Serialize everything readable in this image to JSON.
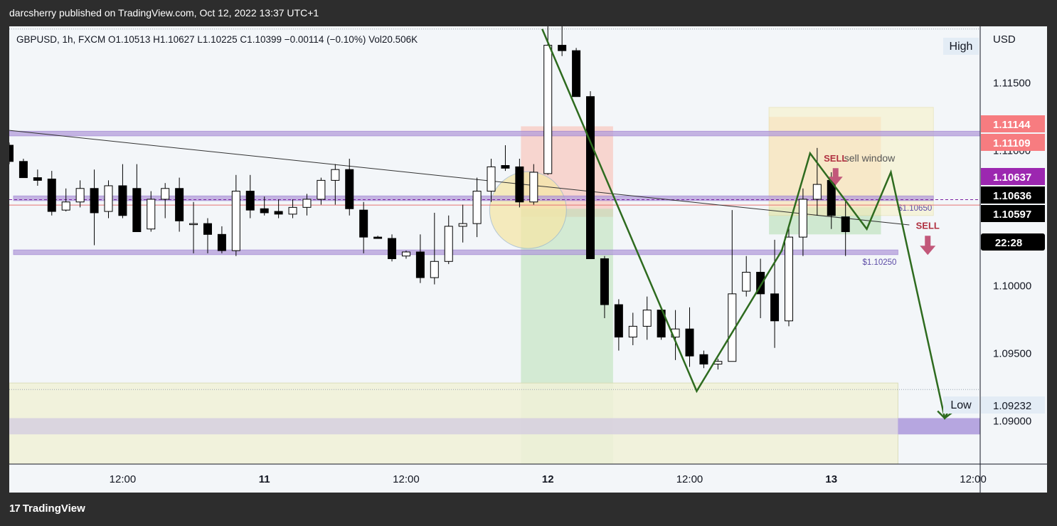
{
  "publish_line": "darcsherry published on TradingView.com, Oct 12, 2022 13:37 UTC+1",
  "brand": "TradingView",
  "brand_icon": "tradingview-logo-icon",
  "chart_data": {
    "type": "candlestick",
    "symbol": "GBPUSD",
    "interval": "1h",
    "source": "FXCM",
    "header_line": "GBPUSD, 1h, FXCM  O1.10513  H1.10627  L1.10225  C1.10399  −0.00114 (−0.10%)  Vol20.506K",
    "currency": "USD",
    "y_range": [
      1.0868,
      1.1192
    ],
    "x_range": [
      0.0,
      68.5
    ],
    "y_ticks": [
      {
        "value": 1.115,
        "label": "1.11500"
      },
      {
        "value": 1.11,
        "label": "1.11000"
      },
      {
        "value": 1.1,
        "label": "1.10000"
      },
      {
        "value": 1.095,
        "label": "1.09500"
      },
      {
        "value": 1.09,
        "label": "1.09000"
      }
    ],
    "x_ticks": [
      {
        "x": 8,
        "label": "12:00"
      },
      {
        "x": 18,
        "label": "11"
      },
      {
        "x": 28,
        "label": "12:00"
      },
      {
        "x": 38,
        "label": "12"
      },
      {
        "x": 48,
        "label": "12:00"
      },
      {
        "x": 58,
        "label": "13"
      },
      {
        "x": 68,
        "label": "12:00"
      }
    ],
    "price_labels": [
      {
        "value": 1.11144,
        "label": "1.11144",
        "bg": "#f77c80",
        "fg": "#ffffff"
      },
      {
        "value": 1.11109,
        "label": "1.11109",
        "bg": "#f77c80",
        "fg": "#ffffff"
      },
      {
        "value": 1.10637,
        "label": "1.10637",
        "bg": "#9c27b0",
        "fg": "#ffffff"
      },
      {
        "value": 1.10636,
        "label": "1.10636",
        "bg": "#000000",
        "fg": "#ffffff"
      },
      {
        "value": 1.10597,
        "label": "1.10597",
        "bg": "#000000",
        "fg": "#ffffff"
      },
      {
        "value": 1.1051,
        "label": "22:28",
        "bg": "#000000",
        "fg": "#ffffff"
      },
      {
        "value": 1.09232,
        "label": "1.09232",
        "bg": "#e3ecf5",
        "fg": "#131722"
      }
    ],
    "high_label": {
      "text": "High",
      "value": 1.119
    },
    "low_label": {
      "text": "Low",
      "value": 1.09232
    },
    "candles": [
      {
        "x": 0.0,
        "o": 1.1104,
        "h": 1.1106,
        "l": 1.109,
        "c": 1.1092
      },
      {
        "x": 1.0,
        "o": 1.1092,
        "h": 1.1094,
        "l": 1.108,
        "c": 1.108
      },
      {
        "x": 2.0,
        "o": 1.108,
        "h": 1.1086,
        "l": 1.1074,
        "c": 1.1078
      },
      {
        "x": 3.0,
        "o": 1.1079,
        "h": 1.1085,
        "l": 1.1052,
        "c": 1.1055
      },
      {
        "x": 4.0,
        "o": 1.1056,
        "h": 1.1072,
        "l": 1.1055,
        "c": 1.1062
      },
      {
        "x": 5.0,
        "o": 1.1062,
        "h": 1.1078,
        "l": 1.1058,
        "c": 1.1072
      },
      {
        "x": 6.0,
        "o": 1.1072,
        "h": 1.1086,
        "l": 1.103,
        "c": 1.1054
      },
      {
        "x": 7.0,
        "o": 1.1055,
        "h": 1.1078,
        "l": 1.105,
        "c": 1.1074
      },
      {
        "x": 8.0,
        "o": 1.1074,
        "h": 1.109,
        "l": 1.105,
        "c": 1.1052
      },
      {
        "x": 9.0,
        "o": 1.1072,
        "h": 1.109,
        "l": 1.104,
        "c": 1.104
      },
      {
        "x": 10.0,
        "o": 1.1042,
        "h": 1.107,
        "l": 1.104,
        "c": 1.1064
      },
      {
        "x": 11.0,
        "o": 1.1064,
        "h": 1.1076,
        "l": 1.105,
        "c": 1.1072
      },
      {
        "x": 12.0,
        "o": 1.1072,
        "h": 1.108,
        "l": 1.104,
        "c": 1.1048
      },
      {
        "x": 13.0,
        "o": 1.1046,
        "h": 1.1062,
        "l": 1.1024,
        "c": 1.1046
      },
      {
        "x": 14.0,
        "o": 1.1046,
        "h": 1.105,
        "l": 1.1024,
        "c": 1.1038
      },
      {
        "x": 15.0,
        "o": 1.1038,
        "h": 1.1044,
        "l": 1.1024,
        "c": 1.1026
      },
      {
        "x": 16.0,
        "o": 1.1026,
        "h": 1.1082,
        "l": 1.1022,
        "c": 1.107
      },
      {
        "x": 17.0,
        "o": 1.107,
        "h": 1.1082,
        "l": 1.105,
        "c": 1.1056
      },
      {
        "x": 18.0,
        "o": 1.1057,
        "h": 1.1066,
        "l": 1.1052,
        "c": 1.1054
      },
      {
        "x": 19.0,
        "o": 1.1055,
        "h": 1.1064,
        "l": 1.105,
        "c": 1.1053
      },
      {
        "x": 20.0,
        "o": 1.1053,
        "h": 1.1064,
        "l": 1.105,
        "c": 1.1058
      },
      {
        "x": 21.0,
        "o": 1.1058,
        "h": 1.1068,
        "l": 1.1052,
        "c": 1.1064
      },
      {
        "x": 22.0,
        "o": 1.1064,
        "h": 1.108,
        "l": 1.106,
        "c": 1.1078
      },
      {
        "x": 23.0,
        "o": 1.1078,
        "h": 1.109,
        "l": 1.106,
        "c": 1.1086
      },
      {
        "x": 24.0,
        "o": 1.1086,
        "h": 1.1094,
        "l": 1.1052,
        "c": 1.1057
      },
      {
        "x": 25.0,
        "o": 1.1056,
        "h": 1.1062,
        "l": 1.1024,
        "c": 1.1036
      },
      {
        "x": 26.0,
        "o": 1.1036,
        "h": 1.1037,
        "l": 1.1035,
        "c": 1.1035
      },
      {
        "x": 27.0,
        "o": 1.1035,
        "h": 1.1038,
        "l": 1.1018,
        "c": 1.102
      },
      {
        "x": 28.0,
        "o": 1.1022,
        "h": 1.1026,
        "l": 1.102,
        "c": 1.1025
      },
      {
        "x": 29.0,
        "o": 1.1025,
        "h": 1.1038,
        "l": 1.1002,
        "c": 1.1006
      },
      {
        "x": 30.0,
        "o": 1.1006,
        "h": 1.1054,
        "l": 1.1001,
        "c": 1.1018
      },
      {
        "x": 31.0,
        "o": 1.1018,
        "h": 1.1052,
        "l": 1.1016,
        "c": 1.1044
      },
      {
        "x": 32.0,
        "o": 1.1044,
        "h": 1.106,
        "l": 1.1032,
        "c": 1.1046
      },
      {
        "x": 33.0,
        "o": 1.1046,
        "h": 1.108,
        "l": 1.1036,
        "c": 1.107
      },
      {
        "x": 34.0,
        "o": 1.107,
        "h": 1.1094,
        "l": 1.1062,
        "c": 1.1088
      },
      {
        "x": 35.0,
        "o": 1.1089,
        "h": 1.1104,
        "l": 1.1085,
        "c": 1.1087
      },
      {
        "x": 36.0,
        "o": 1.1088,
        "h": 1.1094,
        "l": 1.1058,
        "c": 1.1062
      },
      {
        "x": 37.0,
        "o": 1.1062,
        "h": 1.109,
        "l": 1.106,
        "c": 1.1084
      },
      {
        "x": 38.0,
        "o": 1.1083,
        "h": 1.1196,
        "l": 1.1082,
        "c": 1.1178
      },
      {
        "x": 39.0,
        "o": 1.1178,
        "h": 1.1194,
        "l": 1.117,
        "c": 1.1174
      },
      {
        "x": 40.0,
        "o": 1.1174,
        "h": 1.1176,
        "l": 1.114,
        "c": 1.114
      },
      {
        "x": 41.0,
        "o": 1.114,
        "h": 1.1144,
        "l": 1.102,
        "c": 1.102
      },
      {
        "x": 42.0,
        "o": 1.102,
        "h": 1.1022,
        "l": 1.0976,
        "c": 1.0986
      },
      {
        "x": 43.0,
        "o": 1.0986,
        "h": 1.099,
        "l": 1.0952,
        "c": 1.0962
      },
      {
        "x": 44.0,
        "o": 1.0962,
        "h": 1.098,
        "l": 1.0956,
        "c": 1.097
      },
      {
        "x": 45.0,
        "o": 1.097,
        "h": 1.0992,
        "l": 1.096,
        "c": 1.0982
      },
      {
        "x": 46.0,
        "o": 1.0982,
        "h": 1.0984,
        "l": 1.096,
        "c": 1.0962
      },
      {
        "x": 47.0,
        "o": 1.0962,
        "h": 1.0982,
        "l": 1.0945,
        "c": 1.0968
      },
      {
        "x": 48.0,
        "o": 1.0968,
        "h": 1.0984,
        "l": 1.094,
        "c": 1.0948
      },
      {
        "x": 49.0,
        "o": 1.0949,
        "h": 1.0952,
        "l": 1.0939,
        "c": 1.0942
      },
      {
        "x": 50.0,
        "o": 1.0942,
        "h": 1.0946,
        "l": 1.0938,
        "c": 1.0944
      },
      {
        "x": 51.0,
        "o": 1.0944,
        "h": 1.1056,
        "l": 1.0944,
        "c": 1.0994
      },
      {
        "x": 52.0,
        "o": 1.0996,
        "h": 1.1022,
        "l": 1.0992,
        "c": 1.101
      },
      {
        "x": 53.0,
        "o": 1.101,
        "h": 1.102,
        "l": 1.0976,
        "c": 1.0994
      },
      {
        "x": 54.0,
        "o": 1.0994,
        "h": 1.1034,
        "l": 1.0954,
        "c": 1.0974
      },
      {
        "x": 55.0,
        "o": 1.0974,
        "h": 1.1044,
        "l": 1.097,
        "c": 1.1036
      },
      {
        "x": 56.0,
        "o": 1.1036,
        "h": 1.1072,
        "l": 1.1022,
        "c": 1.1064
      },
      {
        "x": 57.0,
        "o": 1.1064,
        "h": 1.1102,
        "l": 1.1052,
        "c": 1.1075
      },
      {
        "x": 58.0,
        "o": 1.1078,
        "h": 1.1084,
        "l": 1.1042,
        "c": 1.1052
      },
      {
        "x": 59.0,
        "o": 1.1051,
        "h": 1.1063,
        "l": 1.1022,
        "c": 1.104
      }
    ],
    "bands": [
      {
        "from": 1.11109,
        "to": 1.11144,
        "color": "#b39ddb",
        "label": ""
      },
      {
        "from": 1.1023,
        "to": 1.10265,
        "color": "#b39ddb",
        "label": "$1.10250"
      },
      {
        "from": 1.1063,
        "to": 1.10665,
        "color": "#b39ddb",
        "label": "$1.10650"
      }
    ],
    "annotations": {
      "sell_window": "sell window",
      "sell_label_1": "SELL",
      "sell_label_2": "SELL",
      "zigzag": [
        {
          "x": 37.6,
          "y": 1.119
        },
        {
          "x": 48.5,
          "y": 1.0922
        },
        {
          "x": 54.5,
          "y": 1.1026
        },
        {
          "x": 56.5,
          "y": 1.1098
        },
        {
          "x": 60.5,
          "y": 1.1042
        },
        {
          "x": 62.2,
          "y": 1.1084
        },
        {
          "x": 66.0,
          "y": 1.0902
        },
        {
          "x": 67.0,
          "y": 1.091
        }
      ],
      "trendline": [
        {
          "x": 0.0,
          "y": 1.1115
        },
        {
          "x": 63.5,
          "y": 1.1045
        }
      ]
    },
    "colors": {
      "up_body": "#ffffff",
      "down_body": "#000000",
      "wick": "#000000",
      "zigzag": "#2e6b1f",
      "sell_text": "#b03040",
      "sell_arrow": "#c2587a"
    }
  }
}
